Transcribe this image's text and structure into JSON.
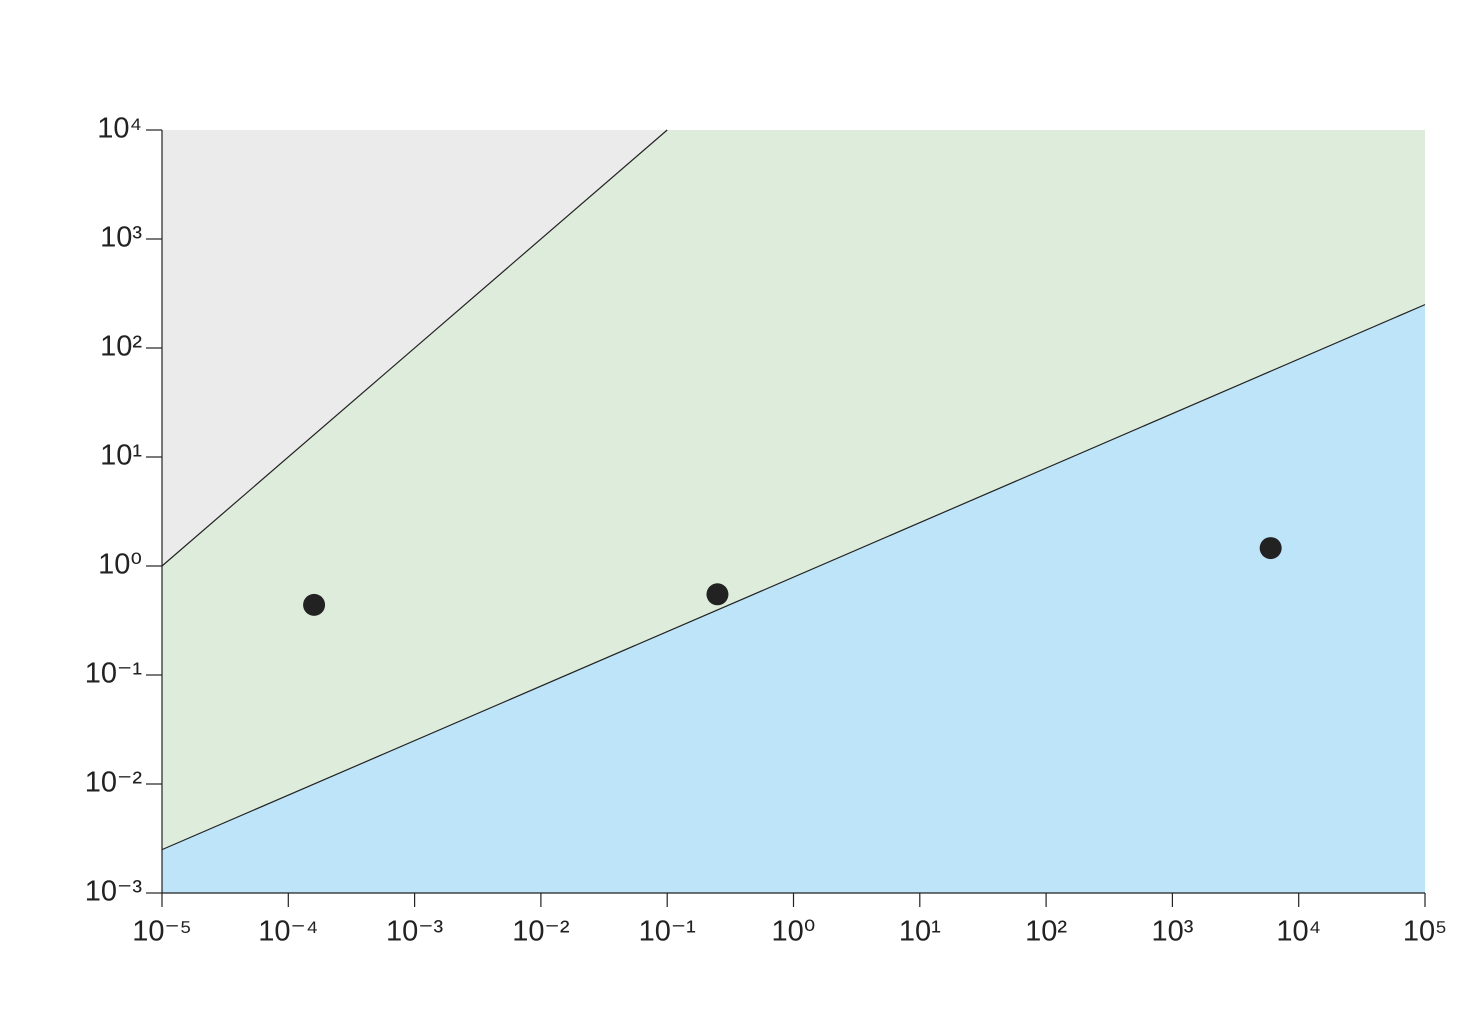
{
  "chart_data": {
    "type": "scatter",
    "log_x": true,
    "log_y": true,
    "x": [
      0.00016,
      0.25,
      6000
    ],
    "values": [
      0.44,
      0.55,
      1.46
    ],
    "color": "#222222",
    "boundaries": [
      {
        "x": [
          1e-05,
          0.1
        ],
        "y": [
          1,
          10000
        ]
      },
      {
        "x": [
          1e-05,
          100000
        ],
        "y": [
          0.0025,
          250
        ]
      }
    ],
    "region_colors": [
      "#ebebeb",
      "#deeddb",
      "#bde4f8"
    ],
    "xlim": [
      1e-05,
      100000
    ],
    "ylim": [
      0.001,
      10000
    ],
    "xticks": [
      {
        "value": 1e-05,
        "label": "10⁻⁵"
      },
      {
        "value": 0.0001,
        "label": "10⁻⁴"
      },
      {
        "value": 0.001,
        "label": "10⁻³"
      },
      {
        "value": 0.01,
        "label": "10⁻²"
      },
      {
        "value": 0.1,
        "label": "10⁻¹"
      },
      {
        "value": 1,
        "label": "10⁰"
      },
      {
        "value": 10,
        "label": "10¹"
      },
      {
        "value": 100,
        "label": "10²"
      },
      {
        "value": 1000,
        "label": "10³"
      },
      {
        "value": 10000,
        "label": "10⁴"
      },
      {
        "value": 100000,
        "label": "10⁵"
      }
    ],
    "yticks": [
      {
        "value": 0.001,
        "label": "10⁻³"
      },
      {
        "value": 0.01,
        "label": "10⁻²"
      },
      {
        "value": 0.1,
        "label": "10⁻¹"
      },
      {
        "value": 1,
        "label": "10⁰"
      },
      {
        "value": 10,
        "label": "10¹"
      },
      {
        "value": 100,
        "label": "10²"
      },
      {
        "value": 1000,
        "label": "10³"
      },
      {
        "value": 10000,
        "label": "10⁴"
      }
    ]
  }
}
